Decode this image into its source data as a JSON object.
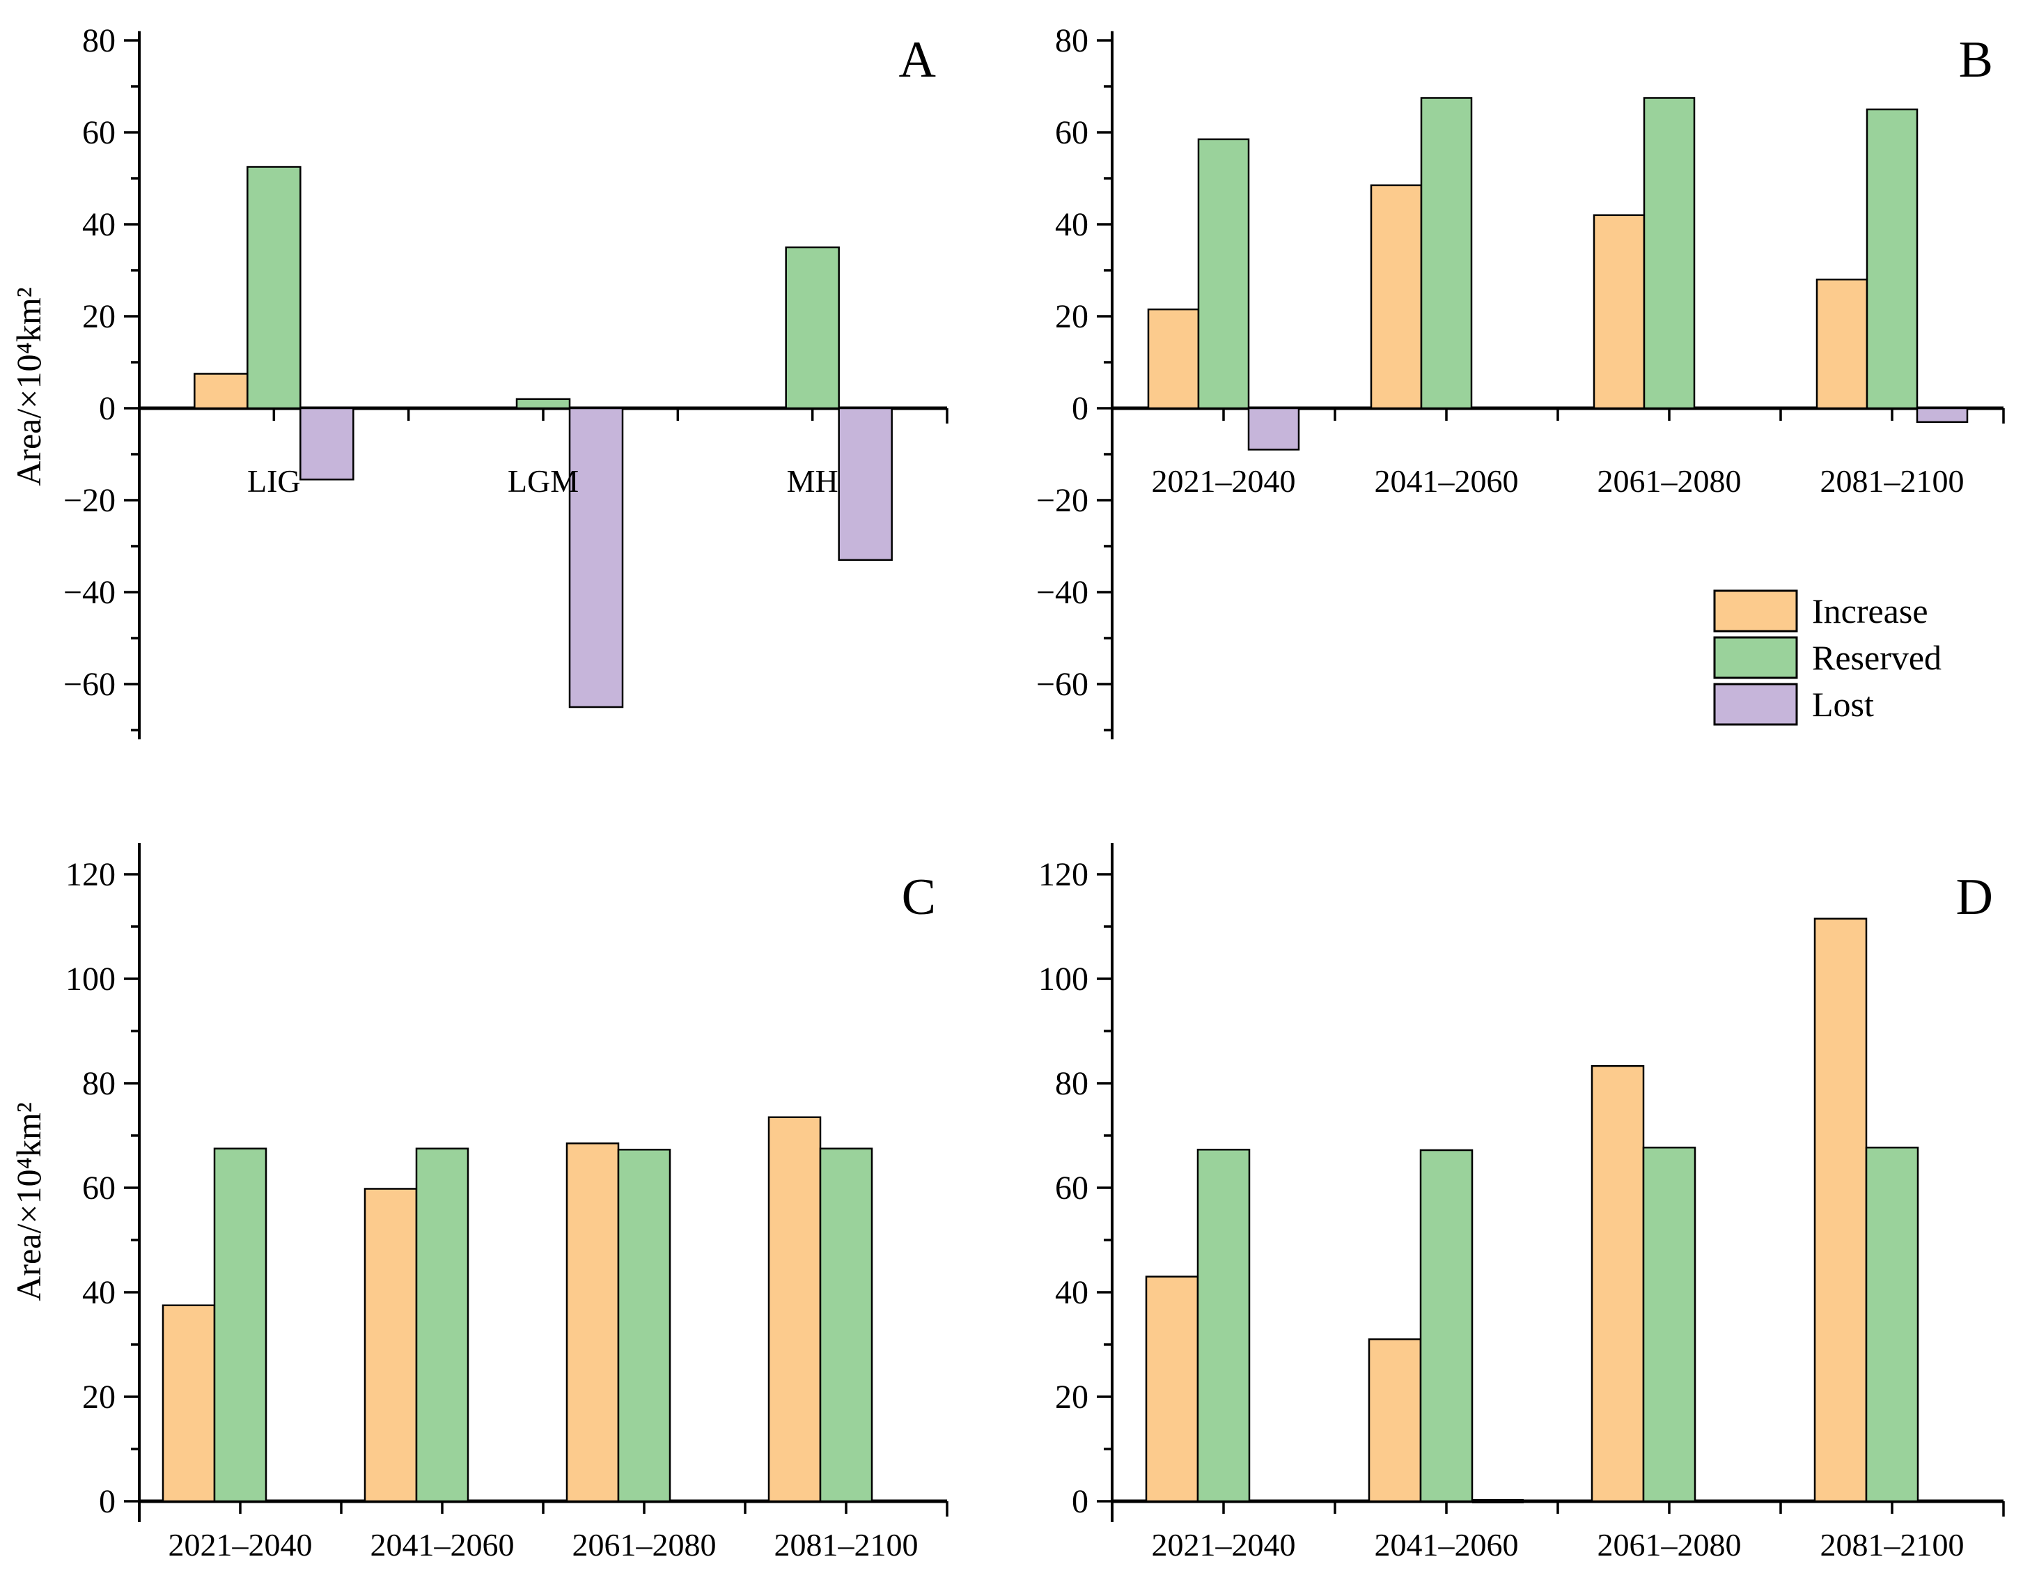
{
  "page": {
    "background": "#ffffff"
  },
  "colors": {
    "increase": "#FCCB8D",
    "reserved": "#9AD29B",
    "lost": "#C6B5DA",
    "axis": "#000000"
  },
  "legend": {
    "position": "lower-right-of-panel-B",
    "items": [
      {
        "key": "increase",
        "label": "Increase"
      },
      {
        "key": "reserved",
        "label": "Reserved"
      },
      {
        "key": "lost",
        "label": "Lost"
      }
    ]
  },
  "chart_data": [
    {
      "id": "a",
      "type": "bar",
      "panel_label": "A",
      "ylabel": "Area/×10⁴km²",
      "xlabel": "",
      "categories": [
        "LIG",
        "LGM",
        "MH"
      ],
      "ylim": [
        -70,
        80
      ],
      "ytick_step": 20,
      "ytick_minor_step": 10,
      "grid": false,
      "series": [
        {
          "key": "increase",
          "name": "Increase",
          "values": [
            7.5,
            null,
            null
          ]
        },
        {
          "key": "reserved",
          "name": "Reserved",
          "values": [
            52.5,
            2,
            35
          ]
        },
        {
          "key": "lost",
          "name": "Lost",
          "values": [
            -15.5,
            -65,
            -33
          ]
        }
      ]
    },
    {
      "id": "b",
      "type": "bar",
      "panel_label": "B",
      "ylabel": "",
      "xlabel": "",
      "categories": [
        "2021–2040",
        "2041–2060",
        "2061–2080",
        "2081–2100"
      ],
      "ylim": [
        -70,
        80
      ],
      "ytick_step": 20,
      "ytick_minor_step": 10,
      "grid": false,
      "legend_position": "lower-right",
      "series": [
        {
          "key": "increase",
          "name": "Increase",
          "values": [
            21.5,
            48.5,
            42,
            28
          ]
        },
        {
          "key": "reserved",
          "name": "Reserved",
          "values": [
            58.5,
            67.5,
            67.5,
            65
          ]
        },
        {
          "key": "lost",
          "name": "Lost",
          "values": [
            -9,
            null,
            null,
            -3
          ]
        }
      ]
    },
    {
      "id": "c",
      "type": "bar",
      "panel_label": "C",
      "ylabel": "Area/×10⁴km²",
      "xlabel": "",
      "categories": [
        "2021–2040",
        "2041–2060",
        "2061–2080",
        "2081–2100"
      ],
      "ylim": [
        0,
        120
      ],
      "ytick_step": 20,
      "ytick_minor_step": 10,
      "grid": false,
      "series": [
        {
          "key": "increase",
          "name": "Increase",
          "values": [
            37.5,
            59.8,
            68.5,
            73.5
          ]
        },
        {
          "key": "reserved",
          "name": "Reserved",
          "values": [
            67.5,
            67.5,
            67.3,
            67.5
          ]
        },
        {
          "key": "lost",
          "name": "Lost",
          "values": [
            null,
            null,
            null,
            null
          ]
        }
      ]
    },
    {
      "id": "d",
      "type": "bar",
      "panel_label": "D",
      "ylabel": "",
      "xlabel": "",
      "categories": [
        "2021–2040",
        "2041–2060",
        "2061–2080",
        "2081–2100"
      ],
      "ylim": [
        0,
        120
      ],
      "ytick_step": 20,
      "ytick_minor_step": 10,
      "grid": false,
      "series": [
        {
          "key": "increase",
          "name": "Increase",
          "values": [
            43,
            31,
            83.3,
            111.5
          ]
        },
        {
          "key": "reserved",
          "name": "Reserved",
          "values": [
            67.3,
            67.2,
            67.7,
            67.7
          ]
        },
        {
          "key": "lost",
          "name": "Lost",
          "values": [
            null,
            0,
            null,
            null
          ]
        }
      ]
    }
  ]
}
